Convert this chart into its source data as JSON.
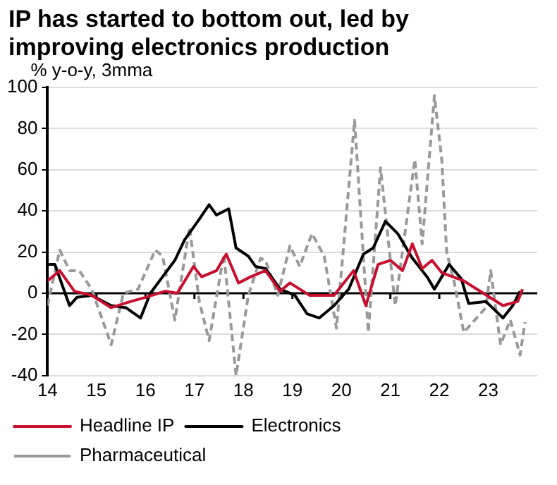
{
  "chart_data": {
    "type": "line",
    "title": "IP has started to bottom out, led by improving electronics production",
    "ylabel": "% y-o-y, 3mma",
    "xlim": [
      2014,
      2024
    ],
    "xticks": [
      {
        "value": 2014,
        "label": "14"
      },
      {
        "value": 2015,
        "label": "15"
      },
      {
        "value": 2016,
        "label": "16"
      },
      {
        "value": 2017,
        "label": "17"
      },
      {
        "value": 2018,
        "label": "18"
      },
      {
        "value": 2019,
        "label": "19"
      },
      {
        "value": 2020,
        "label": "20"
      },
      {
        "value": 2021,
        "label": "21"
      },
      {
        "value": 2022,
        "label": "22"
      },
      {
        "value": 2023,
        "label": "23"
      }
    ],
    "ylim": [
      -40,
      100
    ],
    "yticks": [
      -40,
      -20,
      0,
      20,
      40,
      60,
      80,
      100
    ],
    "grid": "y",
    "legend": "bottom",
    "marker": "none",
    "ref_lines": [
      {
        "axis": "y",
        "value": 0,
        "color": "#000000"
      }
    ],
    "series": [
      {
        "name": "Headline IP",
        "color": "#c8102e",
        "line_style": "solid",
        "x": [
          2014.0,
          2014.25,
          2014.55,
          2014.9,
          2015.3,
          2015.7,
          2016.0,
          2016.4,
          2016.65,
          2016.98,
          2017.15,
          2017.45,
          2017.65,
          2017.9,
          2018.15,
          2018.45,
          2018.75,
          2018.95,
          2019.35,
          2019.85,
          2020.25,
          2020.5,
          2020.75,
          2021.0,
          2021.25,
          2021.45,
          2021.65,
          2021.85,
          2022.05,
          2022.5,
          2022.9,
          2023.3,
          2023.6,
          2023.7
        ],
        "values": [
          6,
          11,
          1,
          -1,
          -7,
          -4,
          -2,
          1,
          0,
          13,
          8,
          11,
          19,
          5,
          8,
          11,
          1,
          5,
          -1,
          -1,
          11,
          -6,
          14,
          16,
          11,
          24,
          12,
          16,
          10,
          6,
          0,
          -6,
          -4,
          2
        ]
      },
      {
        "name": "Electronics",
        "color": "#000000",
        "line_style": "solid",
        "x": [
          2014.0,
          2014.15,
          2014.45,
          2014.6,
          2014.9,
          2015.3,
          2015.6,
          2015.9,
          2016.1,
          2016.35,
          2016.6,
          2016.8,
          2017.1,
          2017.3,
          2017.45,
          2017.7,
          2017.85,
          2018.1,
          2018.25,
          2018.45,
          2018.75,
          2019.05,
          2019.3,
          2019.55,
          2019.85,
          2020.15,
          2020.45,
          2020.65,
          2020.9,
          2021.15,
          2021.45,
          2021.75,
          2021.9,
          2022.2,
          2022.45,
          2022.6,
          2022.95,
          2023.3,
          2023.5,
          2023.65
        ],
        "values": [
          14,
          14,
          -6,
          -2,
          -1,
          -6,
          -7,
          -12,
          0,
          8,
          16,
          26,
          36,
          43,
          38,
          41,
          22,
          18,
          13,
          12,
          2,
          -1,
          -10,
          -12,
          -6,
          2,
          19,
          22,
          35,
          29,
          17,
          8,
          2,
          14,
          7,
          -5,
          -4,
          -12,
          -6,
          1
        ]
      },
      {
        "name": "Pharmaceutical",
        "color": "#999999",
        "line_style": "dashed",
        "x": [
          2014.0,
          2014.25,
          2014.45,
          2014.65,
          2014.9,
          2015.3,
          2015.55,
          2015.85,
          2016.2,
          2016.35,
          2016.6,
          2016.9,
          2017.1,
          2017.3,
          2017.6,
          2017.85,
          2018.1,
          2018.35,
          2018.45,
          2018.7,
          2018.95,
          2019.15,
          2019.4,
          2019.65,
          2019.9,
          2020.27,
          2020.55,
          2020.8,
          2021.1,
          2021.5,
          2021.65,
          2021.9,
          2022.05,
          2022.15,
          2022.3,
          2022.5,
          2022.95,
          2023.05,
          2023.25,
          2023.45,
          2023.65,
          2023.75
        ],
        "values": [
          -6,
          21,
          11,
          11,
          2,
          -25,
          0,
          2,
          21,
          18,
          -13,
          32,
          -4,
          -23,
          19,
          -40,
          -1,
          17,
          16,
          -1,
          23,
          13,
          29,
          18,
          -17,
          84,
          -19,
          61,
          -6,
          65,
          24,
          96,
          65,
          20,
          6,
          -19,
          -7,
          11,
          -25,
          -13,
          -30,
          -14
        ]
      }
    ]
  }
}
